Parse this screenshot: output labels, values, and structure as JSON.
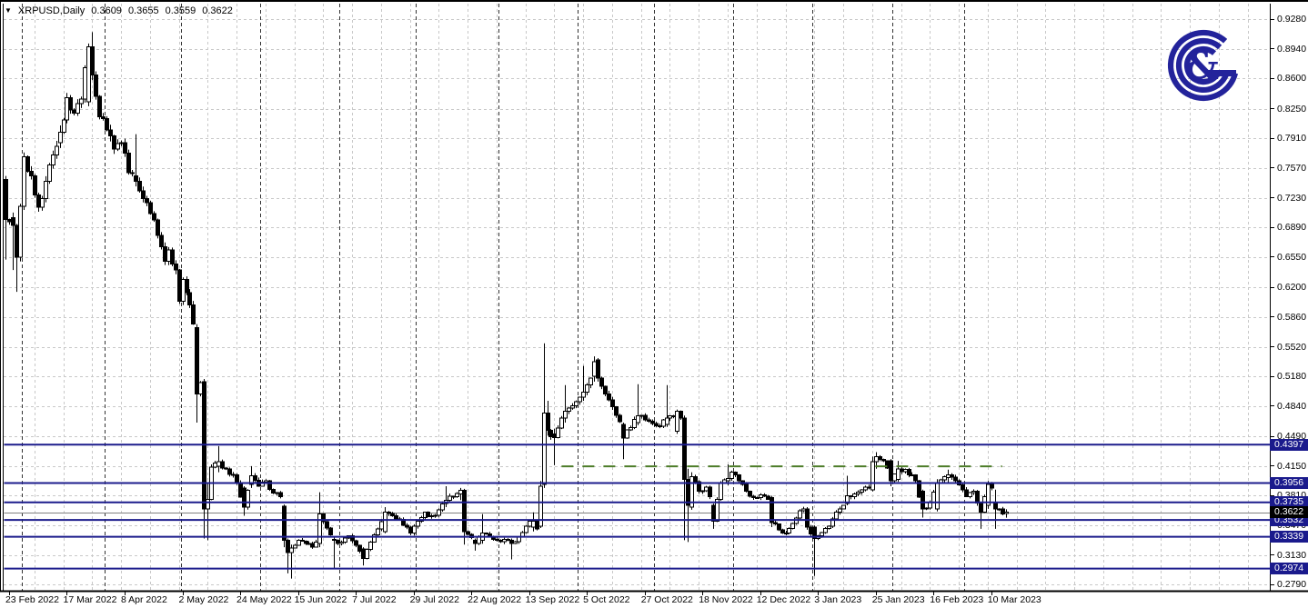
{
  "header": {
    "dropdown_arrow": "▼",
    "symbol_period": "XRPUSD,Daily",
    "open": "0.3609",
    "high": "0.3655",
    "low": "0.3559",
    "close": "0.3622"
  },
  "logo": {
    "ampersand": "&",
    "color": "#23239B"
  },
  "colors": {
    "background": "#FFFFFF",
    "candle": "#000000",
    "grid": "#C8C8C8",
    "month_separator": "#333333",
    "level_line": "#1C1C8C",
    "level_label_bg": "#1A1A8C",
    "current_price_label_bg": "#000000",
    "current_price_line": "#808080",
    "trend_line_green": "#4C7C28",
    "axis_text": "#000000"
  },
  "price_axis": {
    "ticks": [
      "0.9280",
      "0.8940",
      "0.8600",
      "0.8250",
      "0.7910",
      "0.7570",
      "0.7230",
      "0.6890",
      "0.6550",
      "0.6200",
      "0.5860",
      "0.5520",
      "0.5180",
      "0.4840",
      "0.4490",
      "0.4150",
      "0.3810",
      "0.3470",
      "0.3130",
      "0.2790"
    ]
  },
  "date_axis": {
    "ticks": [
      "23 Feb 2022",
      "17 Mar 2022",
      "8 Apr 2022",
      "2 May 2022",
      "24 May 2022",
      "15 Jun 2022",
      "7 Jul 2022",
      "29 Jul 2022",
      "22 Aug 2022",
      "13 Sep 2022",
      "5 Oct 2022",
      "27 Oct 2022",
      "18 Nov 2022",
      "12 Dec 2022",
      "3 Jan 2023",
      "25 Jan 2023",
      "16 Feb 2023",
      "10 Mar 2023"
    ]
  },
  "levels": {
    "lines": [
      {
        "price": 0.4397,
        "label": "0.4397"
      },
      {
        "price": 0.3956,
        "label": "0.3956"
      },
      {
        "price": 0.3735,
        "label": "0.3735"
      },
      {
        "price": 0.3532,
        "label": "0.3532"
      },
      {
        "price": 0.3339,
        "label": "0.3339"
      },
      {
        "price": 0.2974,
        "label": "0.2974"
      }
    ]
  },
  "current_price": {
    "value": 0.3622,
    "label": "0.3622"
  },
  "trend_line": {
    "price": 0.4147,
    "start_index": 154,
    "end_index": 276,
    "style": "dashed"
  },
  "chart_data": {
    "type": "candlestick",
    "symbol": "XRPUSD",
    "timeframe": "Daily",
    "title": "XRPUSD,Daily 0.3609 0.3655 0.3559 0.3622",
    "start_date": "2022-02-22",
    "calendar": "weekdays",
    "candle_count": 278,
    "date_tick_first_index": 1,
    "date_tick_step": 16,
    "ylim": [
      0.279,
      0.928
    ],
    "grid": true,
    "legend": "none",
    "last_candle_ohlc": [
      0.3609,
      0.3655,
      0.3559,
      0.3622
    ],
    "anchors_format": "[index, close] or [index, open, high, low, close]",
    "anchors": [
      [
        0,
        0.744,
        0.748,
        0.652,
        0.698
      ],
      [
        2,
        0.7,
        0.706,
        0.64,
        0.691
      ],
      [
        3,
        0.691,
        0.693,
        0.615,
        0.655
      ],
      [
        4,
        0.655,
        0.716,
        0.65,
        0.713
      ],
      [
        5,
        0.713,
        0.775,
        0.709,
        0.77
      ],
      [
        7,
        0.748
      ],
      [
        9,
        0.712
      ],
      [
        11,
        0.742
      ],
      [
        13,
        0.772
      ],
      [
        15,
        0.786,
        0.806,
        0.78,
        0.798
      ],
      [
        17,
        0.838
      ],
      [
        19,
        0.82
      ],
      [
        21,
        0.836
      ],
      [
        23,
        0.833,
        0.9,
        0.828,
        0.896
      ],
      [
        24,
        0.896,
        0.913,
        0.858,
        0.864
      ],
      [
        26,
        0.816
      ],
      [
        28,
        0.801
      ],
      [
        30,
        0.779
      ],
      [
        32,
        0.786
      ],
      [
        34,
        0.752
      ],
      [
        36,
        0.748,
        0.796,
        0.736,
        0.742
      ],
      [
        38,
        0.722
      ],
      [
        40,
        0.705
      ],
      [
        42,
        0.68
      ],
      [
        44,
        0.65
      ],
      [
        45,
        0.663
      ],
      [
        47,
        0.64
      ],
      [
        48,
        0.604
      ],
      [
        49,
        0.629
      ],
      [
        51,
        0.6
      ],
      [
        52,
        0.578
      ],
      [
        53,
        0.574,
        0.578,
        0.465,
        0.498
      ],
      [
        54,
        0.511
      ],
      [
        55,
        0.512,
        0.515,
        0.332,
        0.366
      ],
      [
        56,
        0.366,
        0.396,
        0.33,
        0.377
      ],
      [
        57,
        0.414
      ],
      [
        59,
        0.415,
        0.438,
        0.408,
        0.42
      ],
      [
        61,
        0.412
      ],
      [
        63,
        0.405
      ],
      [
        64,
        0.396
      ],
      [
        66,
        0.39,
        0.392,
        0.358,
        0.368
      ],
      [
        68,
        0.394,
        0.415,
        0.39,
        0.404
      ],
      [
        70,
        0.392
      ],
      [
        72,
        0.398
      ],
      [
        74,
        0.384
      ],
      [
        76,
        0.38
      ],
      [
        77,
        0.369,
        0.371,
        0.322,
        0.33
      ],
      [
        78,
        0.33,
        0.332,
        0.292,
        0.316
      ],
      [
        79,
        0.316,
        0.325,
        0.286,
        0.321
      ],
      [
        81,
        0.33
      ],
      [
        83,
        0.326
      ],
      [
        85,
        0.322
      ],
      [
        86,
        0.328
      ],
      [
        87,
        0.326,
        0.385,
        0.322,
        0.36
      ],
      [
        89,
        0.344
      ],
      [
        91,
        0.331,
        0.334,
        0.298,
        0.33
      ],
      [
        93,
        0.328
      ],
      [
        95,
        0.335
      ],
      [
        97,
        0.324
      ],
      [
        99,
        0.32,
        0.322,
        0.301,
        0.309
      ],
      [
        101,
        0.328
      ],
      [
        103,
        0.343
      ],
      [
        105,
        0.34,
        0.368,
        0.338,
        0.362
      ],
      [
        107,
        0.358
      ],
      [
        109,
        0.354
      ],
      [
        111,
        0.345
      ],
      [
        112,
        0.338
      ],
      [
        114,
        0.352
      ],
      [
        116,
        0.362
      ],
      [
        118,
        0.358
      ],
      [
        120,
        0.365
      ],
      [
        122,
        0.372,
        0.392,
        0.368,
        0.376
      ],
      [
        124,
        0.38
      ],
      [
        126,
        0.383,
        0.39,
        0.376,
        0.387
      ],
      [
        127,
        0.387,
        0.389,
        0.325,
        0.34
      ],
      [
        129,
        0.333
      ],
      [
        130,
        0.33,
        0.332,
        0.318,
        0.326
      ],
      [
        132,
        0.33,
        0.36,
        0.326,
        0.338
      ],
      [
        134,
        0.334
      ],
      [
        136,
        0.33
      ],
      [
        138,
        0.331
      ],
      [
        140,
        0.33,
        0.332,
        0.308,
        0.326
      ],
      [
        142,
        0.334
      ],
      [
        144,
        0.346
      ],
      [
        146,
        0.345,
        0.362,
        0.34,
        0.352
      ],
      [
        147,
        0.343
      ],
      [
        148,
        0.346,
        0.398,
        0.344,
        0.392
      ],
      [
        149,
        0.394,
        0.556,
        0.39,
        0.476
      ],
      [
        150,
        0.476,
        0.49,
        0.45,
        0.456
      ],
      [
        152,
        0.452,
        0.458,
        0.416,
        0.448
      ],
      [
        154,
        0.47
      ],
      [
        155,
        0.47,
        0.508,
        0.465,
        0.478
      ],
      [
        157,
        0.484
      ],
      [
        159,
        0.494
      ],
      [
        160,
        0.494,
        0.53,
        0.49,
        0.5
      ],
      [
        162,
        0.516
      ],
      [
        163,
        0.518,
        0.541,
        0.512,
        0.535
      ],
      [
        164,
        0.537,
        0.539,
        0.512,
        0.516
      ],
      [
        166,
        0.498
      ],
      [
        168,
        0.483
      ],
      [
        170,
        0.466
      ],
      [
        171,
        0.463,
        0.465,
        0.423,
        0.447
      ],
      [
        173,
        0.459
      ],
      [
        175,
        0.465,
        0.509,
        0.462,
        0.473
      ],
      [
        177,
        0.468
      ],
      [
        179,
        0.464
      ],
      [
        181,
        0.461
      ],
      [
        183,
        0.463,
        0.508,
        0.46,
        0.47
      ],
      [
        185,
        0.472
      ],
      [
        186,
        0.455,
        0.48,
        0.452,
        0.478
      ],
      [
        187,
        0.47
      ],
      [
        188,
        0.47,
        0.473,
        0.33,
        0.4
      ],
      [
        189,
        0.4,
        0.412,
        0.328,
        0.37
      ],
      [
        190,
        0.368,
        0.408,
        0.365,
        0.403
      ],
      [
        192,
        0.386
      ],
      [
        194,
        0.391
      ],
      [
        195,
        0.38
      ],
      [
        196,
        0.37,
        0.372,
        0.343,
        0.352
      ],
      [
        197,
        0.377
      ],
      [
        198,
        0.396
      ],
      [
        200,
        0.398,
        0.417,
        0.393,
        0.401
      ],
      [
        201,
        0.408
      ],
      [
        203,
        0.398
      ],
      [
        205,
        0.386
      ],
      [
        207,
        0.379
      ],
      [
        209,
        0.382
      ],
      [
        211,
        0.377
      ],
      [
        212,
        0.379,
        0.381,
        0.345,
        0.35
      ],
      [
        214,
        0.342
      ],
      [
        216,
        0.338
      ],
      [
        218,
        0.349
      ],
      [
        220,
        0.364
      ],
      [
        221,
        0.366
      ],
      [
        222,
        0.366,
        0.368,
        0.342,
        0.345
      ],
      [
        224,
        0.345,
        0.347,
        0.289,
        0.332
      ],
      [
        226,
        0.339
      ],
      [
        228,
        0.346
      ],
      [
        230,
        0.362
      ],
      [
        232,
        0.37
      ],
      [
        233,
        0.372,
        0.404,
        0.37,
        0.381
      ],
      [
        235,
        0.383
      ],
      [
        237,
        0.388
      ],
      [
        239,
        0.39
      ],
      [
        240,
        0.388,
        0.426,
        0.386,
        0.42
      ],
      [
        241,
        0.42,
        0.431,
        0.412,
        0.426
      ],
      [
        243,
        0.421
      ],
      [
        245,
        0.421,
        0.423,
        0.392,
        0.398
      ],
      [
        247,
        0.4,
        0.421,
        0.397,
        0.412
      ],
      [
        249,
        0.411
      ],
      [
        251,
        0.405
      ],
      [
        252,
        0.398
      ],
      [
        254,
        0.386,
        0.388,
        0.356,
        0.366
      ],
      [
        256,
        0.373
      ],
      [
        258,
        0.366,
        0.4,
        0.363,
        0.396
      ],
      [
        260,
        0.403
      ],
      [
        261,
        0.402,
        0.411,
        0.396,
        0.405
      ],
      [
        263,
        0.398
      ],
      [
        265,
        0.388
      ],
      [
        266,
        0.38
      ],
      [
        268,
        0.386
      ],
      [
        270,
        0.372,
        0.374,
        0.343,
        0.362
      ],
      [
        272,
        0.37,
        0.398,
        0.366,
        0.394
      ],
      [
        273,
        0.39
      ],
      [
        274,
        0.372,
        0.388,
        0.343,
        0.366
      ],
      [
        276,
        0.36
      ],
      [
        277,
        0.3609,
        0.3655,
        0.3559,
        0.3622
      ]
    ]
  }
}
